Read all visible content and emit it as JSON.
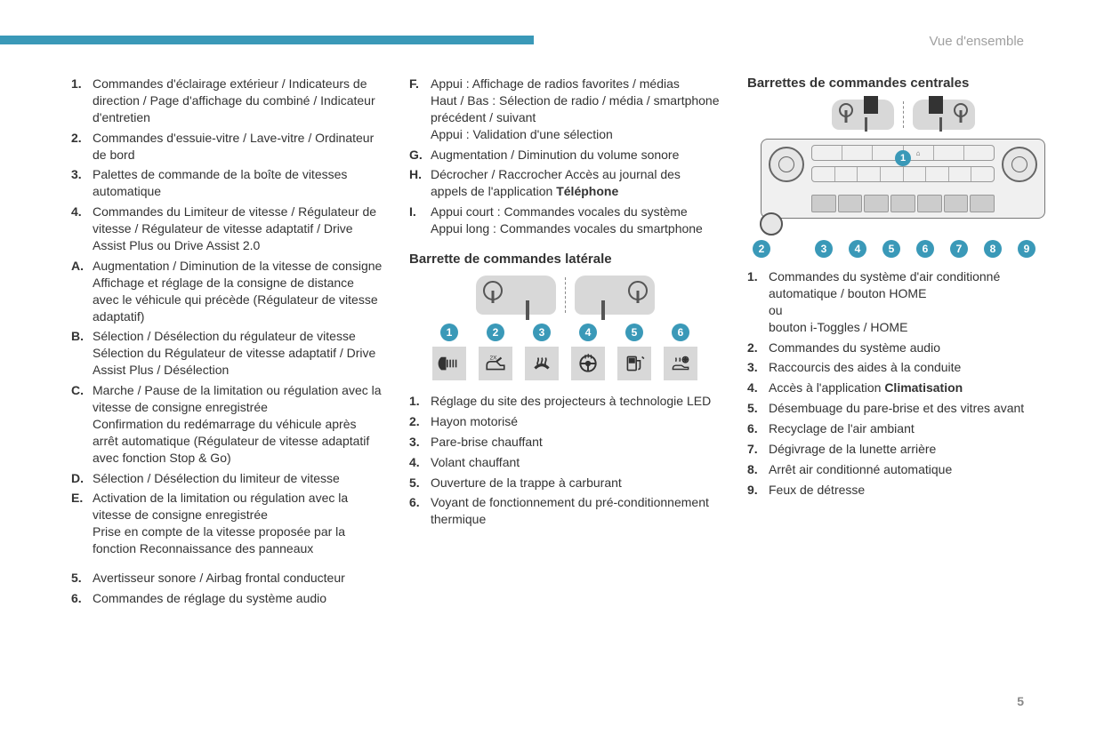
{
  "header": {
    "section_label": "Vue d'ensemble"
  },
  "page_number": "5",
  "colors": {
    "accent": "#3a99b8",
    "text": "#333333",
    "muted": "#a0a0a0",
    "box_bg": "#d8d8d8"
  },
  "column1": {
    "items_numeric_1": [
      {
        "marker": "1.",
        "text": "Commandes d'éclairage extérieur / Indicateurs de direction / Page d'affichage du combiné / Indicateur d'entretien"
      },
      {
        "marker": "2.",
        "text": "Commandes d'essuie-vitre / Lave-vitre / Ordinateur de bord"
      },
      {
        "marker": "3.",
        "text": "Palettes de commande de la boîte de vitesses automatique"
      },
      {
        "marker": "4.",
        "text": "Commandes du Limiteur de vitesse / Régulateur de vitesse / Régulateur de vitesse adaptatif / Drive Assist Plus ou Drive Assist 2.0"
      }
    ],
    "items_alpha": [
      {
        "marker": "A.",
        "text": "Augmentation / Diminution de la vitesse de consigne\nAffichage et réglage de la consigne de distance avec le véhicule qui précède (Régulateur de vitesse adaptatif)"
      },
      {
        "marker": "B.",
        "text": "Sélection / Désélection du régulateur de vitesse\nSélection du Régulateur de vitesse adaptatif / Drive Assist Plus / Désélection"
      },
      {
        "marker": "C.",
        "text": "Marche / Pause de la limitation ou régulation avec la vitesse de consigne enregistrée\nConfirmation du redémarrage du véhicule après arrêt automatique (Régulateur de vitesse adaptatif avec fonction Stop & Go)"
      },
      {
        "marker": "D.",
        "text": "Sélection / Désélection du limiteur de vitesse"
      },
      {
        "marker": "E.",
        "text": "Activation de la limitation ou régulation avec la vitesse de consigne enregistrée\nPrise en compte de la vitesse proposée par la fonction Reconnaissance des panneaux"
      }
    ],
    "items_numeric_2": [
      {
        "marker": "5.",
        "text": "Avertisseur sonore / Airbag frontal conducteur"
      },
      {
        "marker": "6.",
        "text": "Commandes de réglage du système audio"
      }
    ]
  },
  "column2": {
    "items_alpha": [
      {
        "marker": "F.",
        "text": "Appui : Affichage de radios favorites / médias\nHaut / Bas : Sélection de radio / média / smartphone précédent / suivant\nAppui : Validation d'une sélection"
      },
      {
        "marker": "G.",
        "text": "Augmentation / Diminution du volume sonore"
      },
      {
        "marker": "H.",
        "text_pre": "Décrocher / Raccrocher\nAccès au journal des appels de l'application ",
        "bold": "Téléphone"
      },
      {
        "marker": "I.",
        "text": "Appui court : Commandes vocales du système\nAppui long : Commandes vocales du smartphone"
      }
    ],
    "section_title": "Barrette de commandes latérale",
    "lateral_buttons": [
      {
        "num": "1",
        "icon": "headlight-adjust"
      },
      {
        "num": "2",
        "icon": "tailgate"
      },
      {
        "num": "3",
        "icon": "windshield-heat"
      },
      {
        "num": "4",
        "icon": "steering-heat"
      },
      {
        "num": "5",
        "icon": "fuel-flap"
      },
      {
        "num": "6",
        "icon": "preconditioning"
      }
    ],
    "lateral_list": [
      {
        "marker": "1.",
        "text": "Réglage du site des projecteurs à technologie LED"
      },
      {
        "marker": "2.",
        "text": "Hayon motorisé"
      },
      {
        "marker": "3.",
        "text": "Pare-brise chauffant"
      },
      {
        "marker": "4.",
        "text": "Volant chauffant"
      },
      {
        "marker": "5.",
        "text": "Ouverture de la trappe à carburant"
      },
      {
        "marker": "6.",
        "text": "Voyant de fonctionnement du pré-conditionnement thermique"
      }
    ]
  },
  "column3": {
    "section_title": "Barrettes de commandes centrales",
    "panel_top_labels": [
      "",
      "",
      "",
      "⌂",
      "",
      ""
    ],
    "panel_number_1": "1",
    "bottom_numbers": [
      "2",
      "3",
      "4",
      "5",
      "6",
      "7",
      "8",
      "9"
    ],
    "central_list": [
      {
        "marker": "1.",
        "text": "Commandes du système d'air conditionné automatique / bouton HOME\nou\nbouton i-Toggles / HOME"
      },
      {
        "marker": "2.",
        "text": "Commandes du système audio"
      },
      {
        "marker": "3.",
        "text": "Raccourcis des aides à la conduite"
      },
      {
        "marker": "4.",
        "text_pre": "Accès à l'application ",
        "bold": "Climatisation"
      },
      {
        "marker": "5.",
        "text": "Désembuage du pare-brise et des vitres avant"
      },
      {
        "marker": "6.",
        "text": "Recyclage de l'air ambiant"
      },
      {
        "marker": "7.",
        "text": "Dégivrage de la lunette arrière"
      },
      {
        "marker": "8.",
        "text": "Arrêt air conditionné automatique"
      },
      {
        "marker": "9.",
        "text": "Feux de détresse"
      }
    ]
  }
}
